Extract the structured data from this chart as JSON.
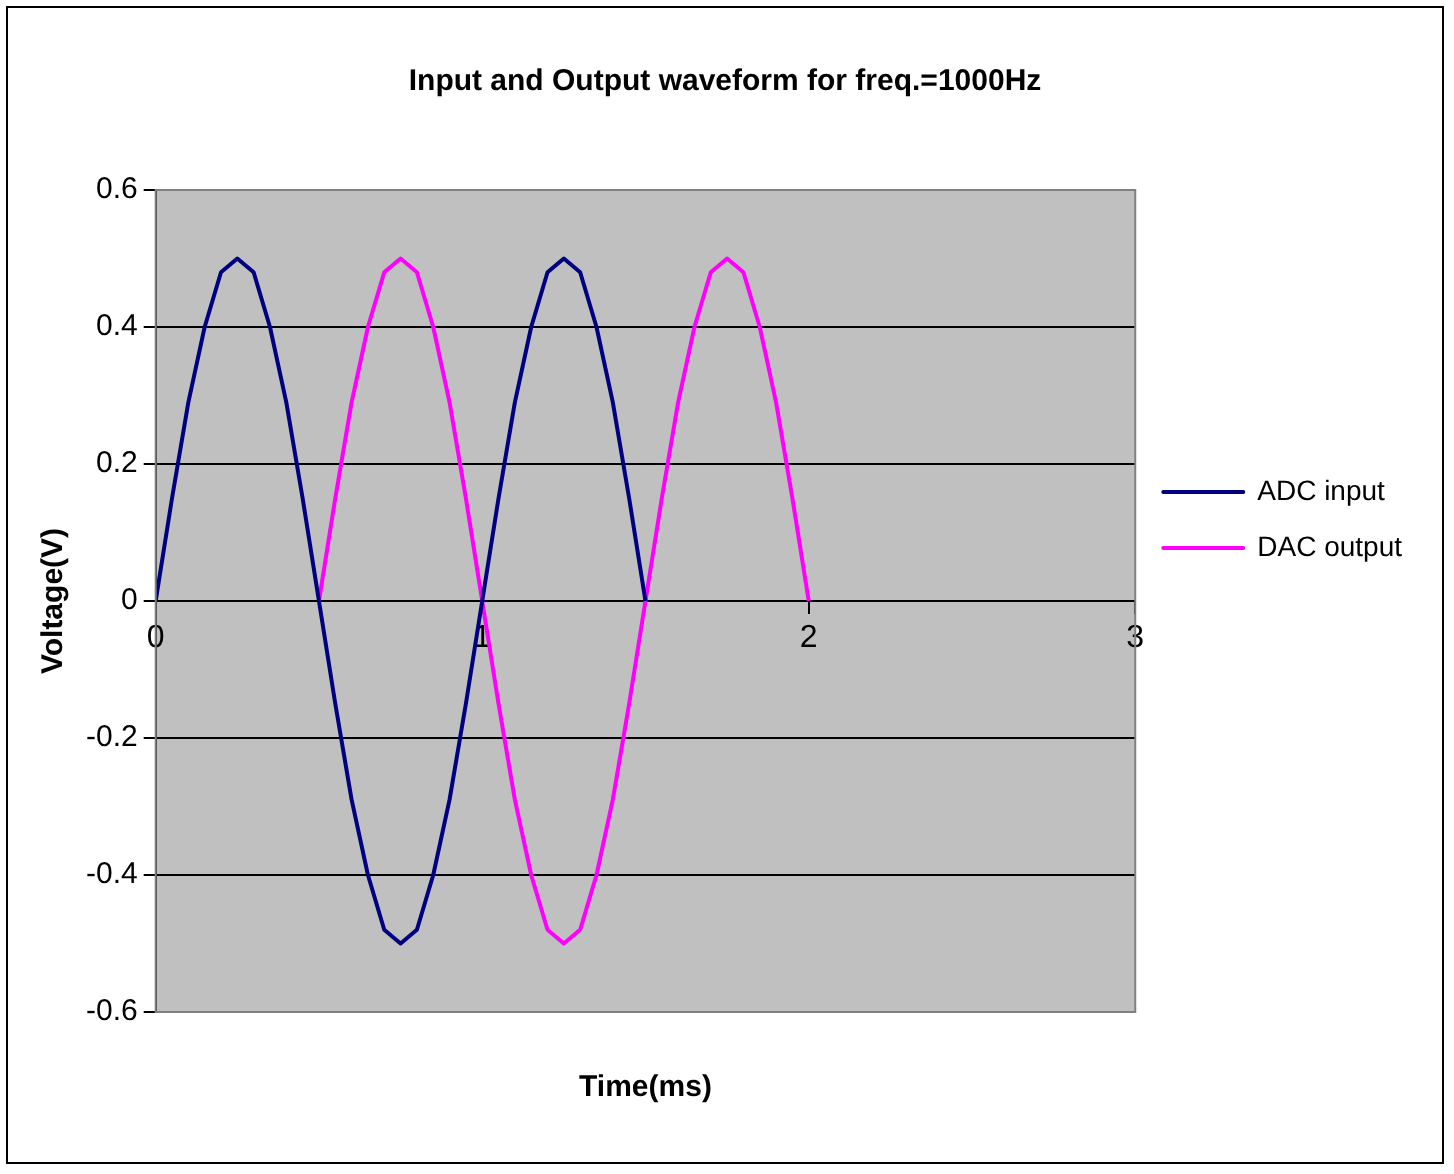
{
  "chart_data": {
    "type": "line",
    "title": "Input and Output waveform for freq.=1000Hz",
    "xlabel": "Time(ms)",
    "ylabel": "Voltage(V)",
    "xlim": [
      0,
      3
    ],
    "xticks": [
      0,
      1,
      2,
      3
    ],
    "ylim": [
      -0.6,
      0.6
    ],
    "yticks": [
      -0.6,
      -0.4,
      -0.2,
      0,
      0.2,
      0.4,
      0.6
    ],
    "grid": "y",
    "legend": "right",
    "marker": "none",
    "line_style": "solid",
    "series": [
      {
        "name": "ADC input",
        "color": "#000080",
        "x": [
          0,
          0.05,
          0.1,
          0.15,
          0.2,
          0.25,
          0.3,
          0.35,
          0.4,
          0.45,
          0.5,
          0.55,
          0.6,
          0.65,
          0.7,
          0.75,
          0.8,
          0.85,
          0.9,
          0.95,
          1,
          1.05,
          1.1,
          1.15,
          1.2,
          1.25,
          1.3,
          1.35,
          1.4,
          1.45,
          1.5
        ],
        "values": [
          0,
          0.15,
          0.29,
          0.4,
          0.48,
          0.5,
          0.48,
          0.4,
          0.29,
          0.15,
          0,
          -0.15,
          -0.29,
          -0.4,
          -0.48,
          -0.5,
          -0.48,
          -0.4,
          -0.29,
          -0.15,
          0,
          0.15,
          0.29,
          0.4,
          0.48,
          0.5,
          0.48,
          0.4,
          0.29,
          0.15,
          0
        ]
      },
      {
        "name": "DAC output",
        "color": "#ff00ff",
        "x": [
          0.5,
          0.55,
          0.6,
          0.65,
          0.7,
          0.75,
          0.8,
          0.85,
          0.9,
          0.95,
          1,
          1.05,
          1.1,
          1.15,
          1.2,
          1.25,
          1.3,
          1.35,
          1.4,
          1.45,
          1.5,
          1.55,
          1.6,
          1.65,
          1.7,
          1.75,
          1.8,
          1.85,
          1.9,
          1.95,
          2
        ],
        "values": [
          0,
          0.15,
          0.29,
          0.4,
          0.48,
          0.5,
          0.48,
          0.4,
          0.29,
          0.15,
          0,
          -0.15,
          -0.29,
          -0.4,
          -0.48,
          -0.5,
          -0.48,
          -0.4,
          -0.29,
          -0.15,
          0,
          0.15,
          0.29,
          0.4,
          0.48,
          0.5,
          0.48,
          0.4,
          0.29,
          0.15,
          0
        ]
      }
    ]
  }
}
